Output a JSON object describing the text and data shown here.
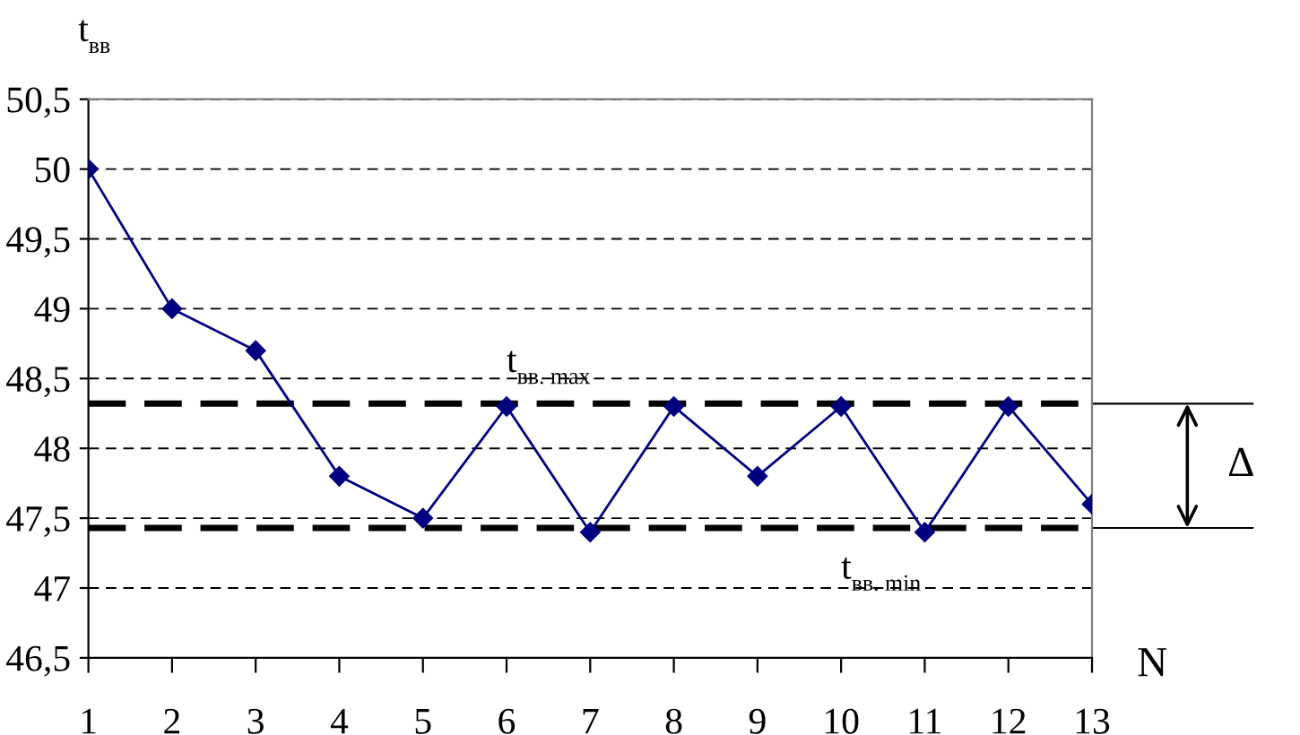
{
  "chart_data": {
    "type": "line",
    "xlabel": "N",
    "ylabel": "t$_{вв}$",
    "categories": [
      "1",
      "2",
      "3",
      "4",
      "5",
      "6",
      "7",
      "8",
      "9",
      "10",
      "11",
      "12",
      "13"
    ],
    "series": [
      {
        "color": "#000080",
        "values": [
          50,
          49,
          48.7,
          47.8,
          47.5,
          48.3,
          47.4,
          48.3,
          47.8,
          48.3,
          47.4,
          48.3,
          47.6
        ]
      }
    ],
    "ylim": [
      46.5,
      50.5
    ],
    "yticks": [
      {
        "value": 46.5,
        "label": "46,5"
      },
      47,
      {
        "value": 47.5,
        "label": "47,5"
      },
      48,
      {
        "value": 48.5,
        "label": "48,5"
      },
      49,
      {
        "value": 49.5,
        "label": "49,5"
      },
      50,
      {
        "value": 50.5,
        "label": "50,5"
      }
    ],
    "ref_lines": [
      {
        "axis": "y",
        "value": 48.32,
        "label": "t$_{вв. max}$",
        "color": "#000000",
        "line_style": "dashed"
      },
      {
        "axis": "y",
        "value": 47.43,
        "label": "t$_{вв. min}$",
        "color": "#000000",
        "line_style": "dashed"
      }
    ],
    "annotations": [
      "Δ"
    ],
    "grid": "y",
    "marker": "diamond",
    "line_style": "solid"
  }
}
